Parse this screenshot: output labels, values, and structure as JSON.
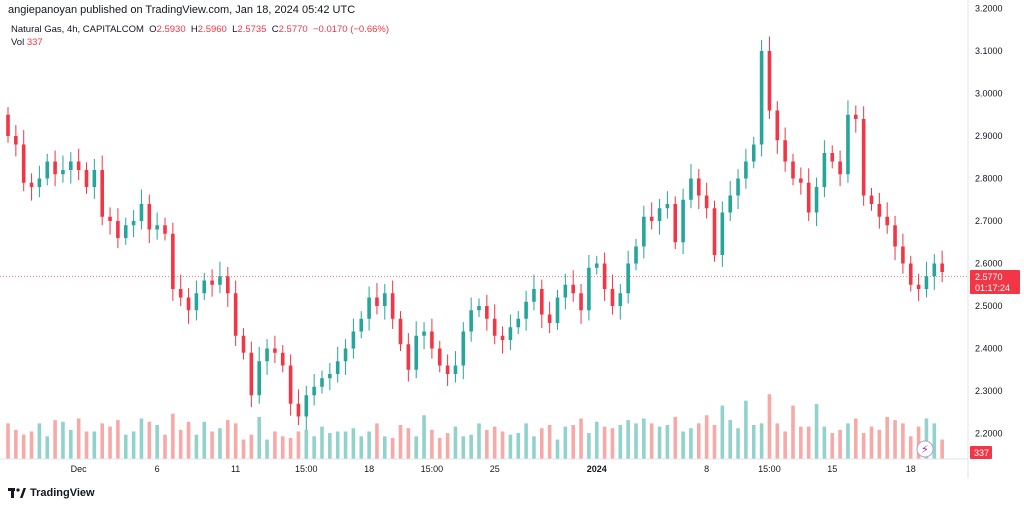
{
  "header": {
    "published": "angiepanoyan published on TradingView.com, Jan 18, 2024 05:42 UTC",
    "symbol": "Natural Gas, 4h, CAPITALCOM",
    "o_label": "O",
    "o_value": "2.5930",
    "h_label": "H",
    "h_value": "2.5960",
    "l_label": "L",
    "l_value": "2.5735",
    "c_label": "C",
    "c_value": "2.5770",
    "change": "−0.0170 (−0.66%)",
    "vol_label": "Vol",
    "vol_value": "337"
  },
  "price_tag": {
    "price": "2.5770",
    "countdown": "01:17:24"
  },
  "vol_tag": "337",
  "footer": {
    "brand": "TradingView"
  },
  "colors": {
    "up": "#26a69a",
    "down": "#f23645",
    "vol_up": "#92d2cc",
    "vol_down": "#f7a9a7"
  },
  "chart_data": {
    "type": "candlestick",
    "title": "Natural Gas, 4h, CAPITALCOM",
    "ylim": [
      2.14,
      3.22
    ],
    "y_ticks": [
      "3.2000",
      "3.1000",
      "3.0000",
      "2.9000",
      "2.8000",
      "2.7000",
      "2.6000",
      "2.5000",
      "2.4000",
      "2.3000",
      "2.2000"
    ],
    "x_ticks": [
      {
        "label": "Dec",
        "index": 9
      },
      {
        "label": "6",
        "index": 19
      },
      {
        "label": "11",
        "index": 29
      },
      {
        "label": "15:00",
        "index": 38
      },
      {
        "label": "18",
        "index": 46
      },
      {
        "label": "15:00",
        "index": 54
      },
      {
        "label": "25",
        "index": 62
      },
      {
        "label": "2024",
        "index": 75,
        "bold": true
      },
      {
        "label": "8",
        "index": 89
      },
      {
        "label": "15:00",
        "index": 97
      },
      {
        "label": "15",
        "index": 105
      },
      {
        "label": "18",
        "index": 115
      }
    ],
    "closes": [
      2.9,
      2.88,
      2.79,
      2.78,
      2.8,
      2.84,
      2.81,
      2.82,
      2.84,
      2.82,
      2.78,
      2.82,
      2.71,
      2.7,
      2.66,
      2.69,
      2.7,
      2.74,
      2.68,
      2.69,
      2.67,
      2.54,
      2.52,
      2.49,
      2.53,
      2.56,
      2.55,
      2.57,
      2.53,
      2.43,
      2.39,
      2.29,
      2.37,
      2.4,
      2.39,
      2.36,
      2.27,
      2.24,
      2.29,
      2.31,
      2.33,
      2.34,
      2.37,
      2.4,
      2.44,
      2.47,
      2.52,
      2.5,
      2.53,
      2.47,
      2.41,
      2.35,
      2.43,
      2.44,
      2.4,
      2.36,
      2.34,
      2.36,
      2.44,
      2.49,
      2.5,
      2.47,
      2.43,
      2.42,
      2.45,
      2.47,
      2.51,
      2.54,
      2.48,
      2.46,
      2.52,
      2.55,
      2.53,
      2.49,
      2.59,
      2.6,
      2.54,
      2.5,
      2.53,
      2.6,
      2.64,
      2.71,
      2.7,
      2.73,
      2.74,
      2.65,
      2.75,
      2.8,
      2.76,
      2.73,
      2.62,
      2.72,
      2.76,
      2.8,
      2.84,
      2.88,
      3.1,
      2.96,
      2.89,
      2.84,
      2.8,
      2.79,
      2.72,
      2.78,
      2.86,
      2.84,
      2.81,
      2.95,
      2.94,
      2.76,
      2.74,
      2.71,
      2.69,
      2.64,
      2.6,
      2.55,
      2.54,
      2.57,
      2.6,
      2.58
    ],
    "volumes": [
      22,
      18,
      15,
      17,
      22,
      14,
      24,
      23,
      18,
      25,
      17,
      17,
      22,
      20,
      24,
      15,
      17,
      25,
      23,
      21,
      15,
      28,
      18,
      23,
      15,
      23,
      17,
      19,
      24,
      22,
      12,
      15,
      26,
      12,
      17,
      14,
      13,
      17,
      18,
      14,
      20,
      16,
      17,
      17,
      19,
      14,
      17,
      22,
      14,
      13,
      21,
      19,
      14,
      27,
      18,
      13,
      16,
      20,
      14,
      15,
      22,
      18,
      20,
      17,
      15,
      16,
      22,
      14,
      19,
      21,
      12,
      20,
      21,
      25,
      16,
      23,
      20,
      19,
      21,
      24,
      22,
      25,
      22,
      20,
      21,
      26,
      17,
      19,
      22,
      27,
      21,
      33,
      24,
      19,
      36,
      21,
      22,
      40,
      22,
      17,
      33,
      20,
      20,
      34,
      20,
      16,
      18,
      22,
      25,
      16,
      20,
      18,
      26,
      24,
      22,
      14,
      20,
      25,
      22,
      12
    ]
  }
}
